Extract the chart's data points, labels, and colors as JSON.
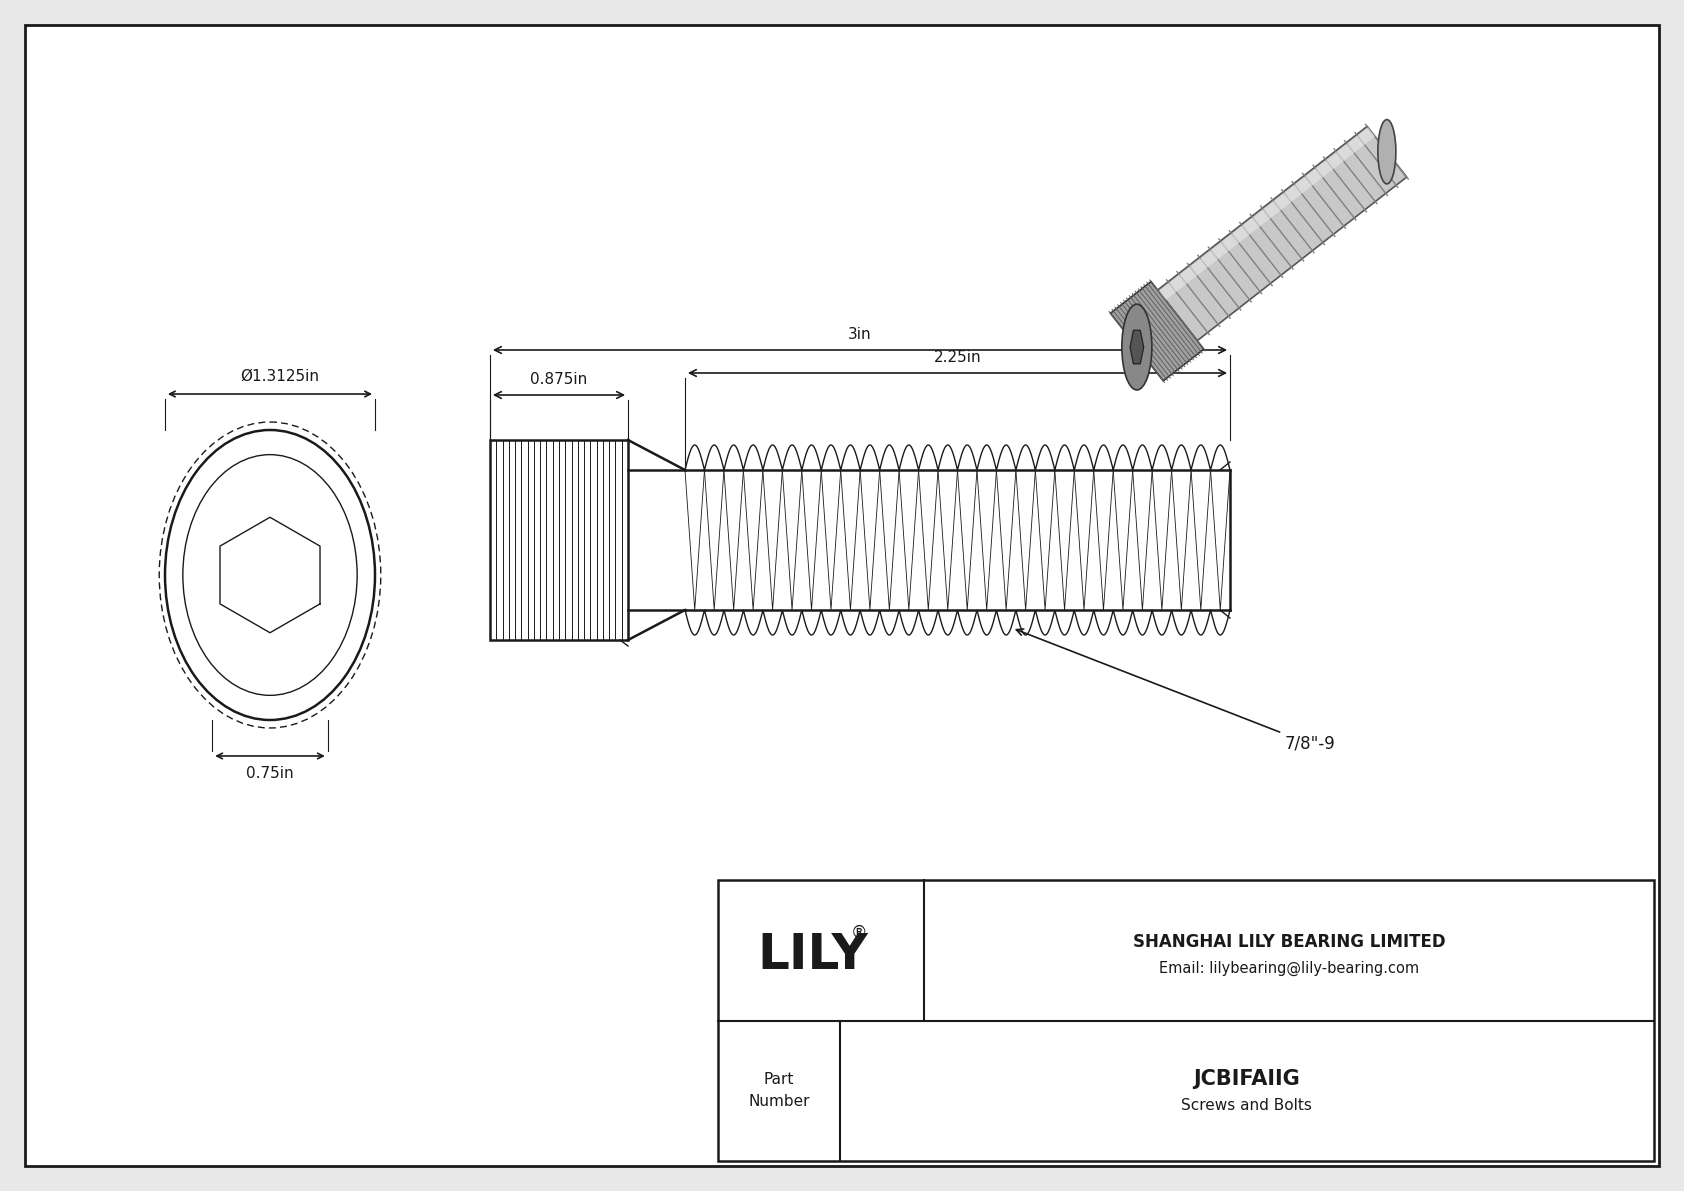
{
  "bg_color": "#e8e8e8",
  "drawing_bg": "#ffffff",
  "line_color": "#1a1a1a",
  "title": "JCBIFAIIG",
  "subtitle": "Screws and Bolts",
  "company": "SHANGHAI LILY BEARING LIMITED",
  "email": "Email: lilybearing@lily-bearing.com",
  "part_label": "Part\nNumber",
  "dim_diameter": "Ø1.3125in",
  "dim_hex": "0.75in",
  "dim_head_length": "0.875in",
  "dim_total_length": "3in",
  "dim_thread_length": "2.25in",
  "thread_label": "7/8\"-9"
}
